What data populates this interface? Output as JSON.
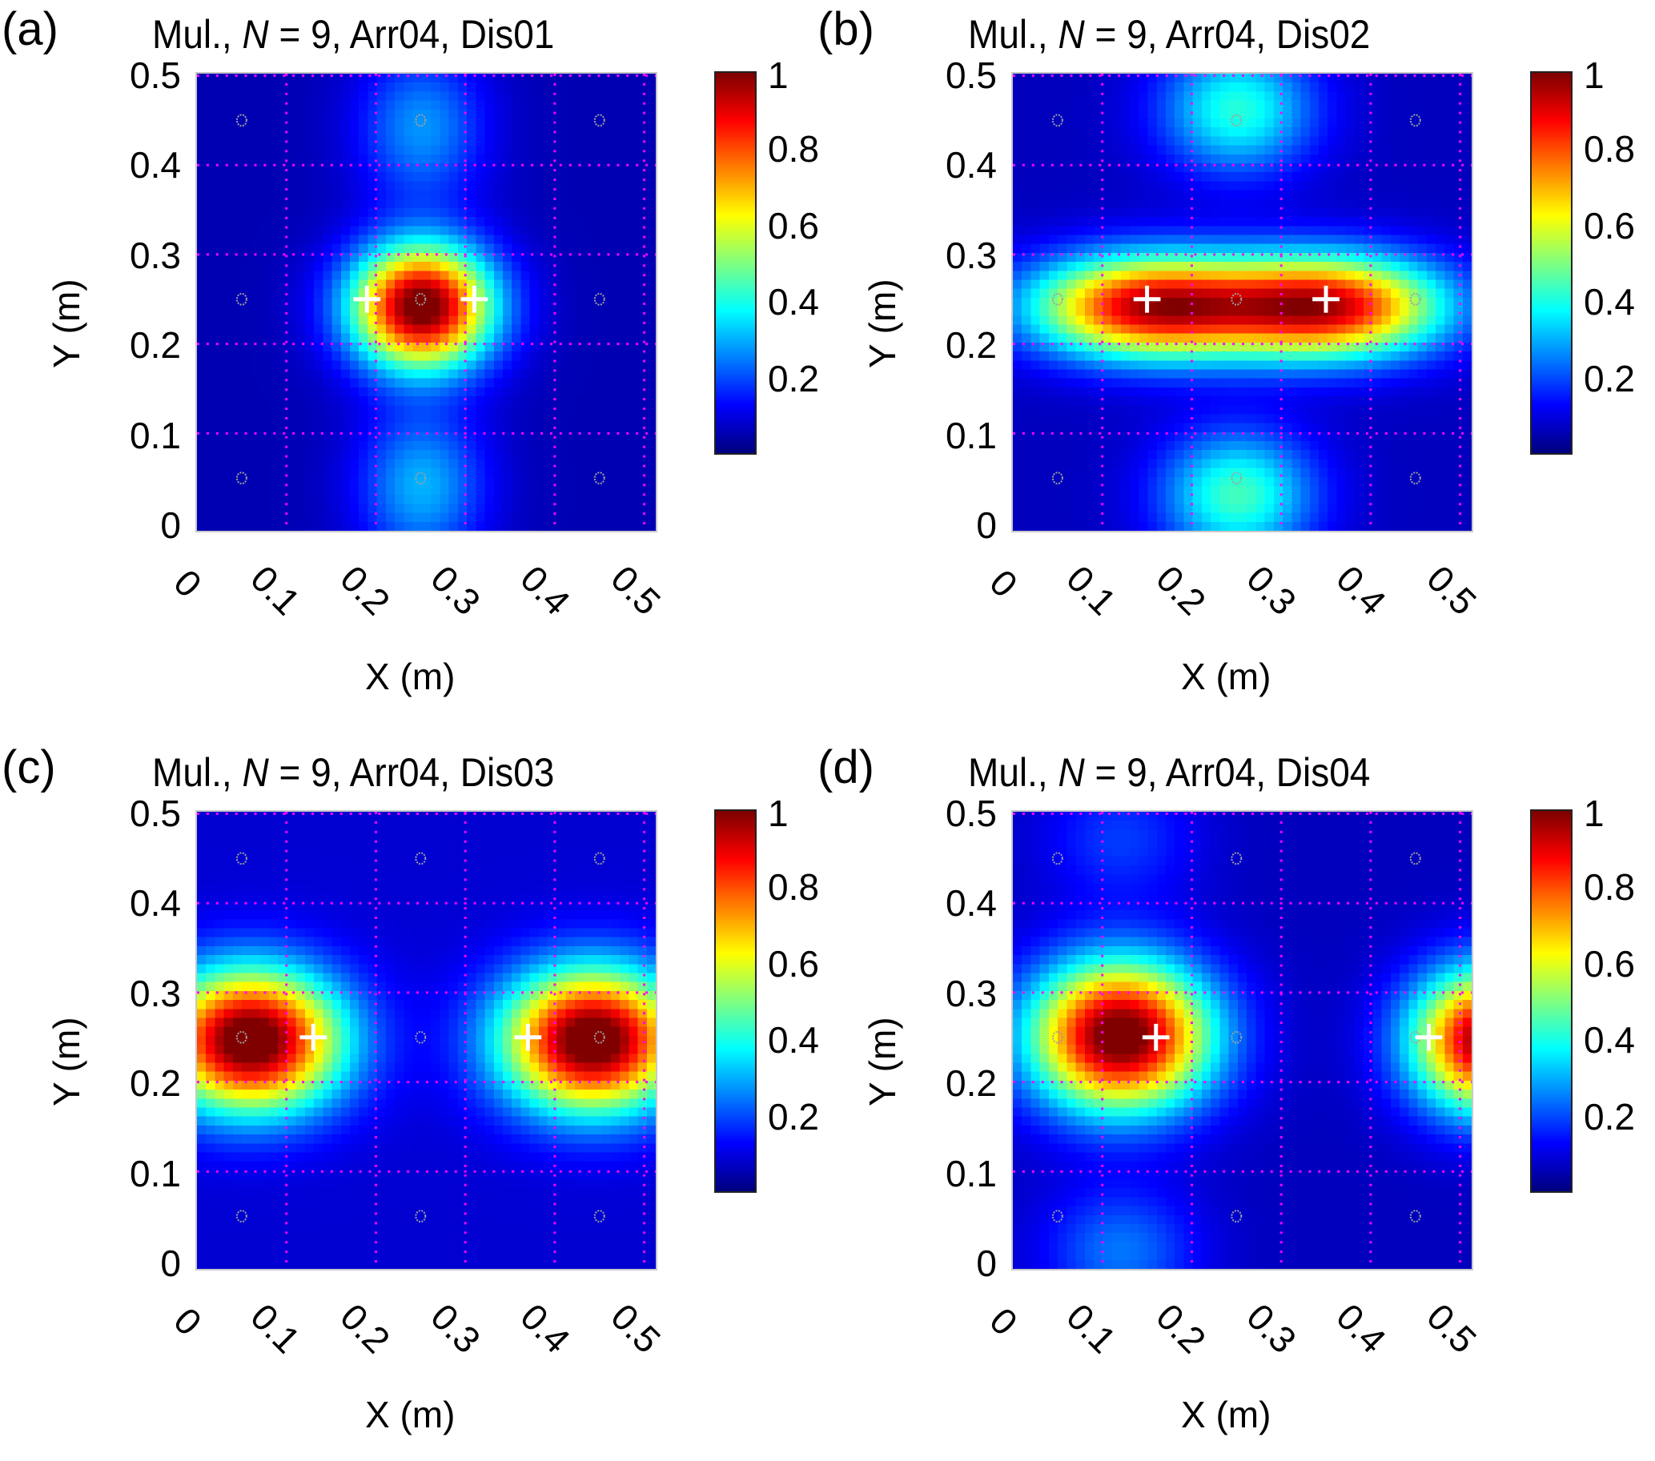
{
  "figure": {
    "colormap": "jet",
    "grid_color": "#ff00ff",
    "circle_color": "#a0a0a0",
    "cross_color": "#ffffff",
    "colorbar_ticks": [
      "1",
      "0.8",
      "0.6",
      "0.4",
      "0.2"
    ],
    "colorbar_tick_values": [
      1,
      0.8,
      0.6,
      0.4,
      0.2
    ],
    "colorbar_range": [
      0,
      1
    ]
  },
  "chart_data": [
    {
      "type": "heatmap",
      "panel_label": "(a)",
      "title_prefix": "Mul., ",
      "title_italic": "N",
      "title_suffix": " = 9, Arr04, Dis01",
      "xlabel": "X (m)",
      "ylabel": "Y (m)",
      "xlim": [
        0,
        0.51
      ],
      "ylim": [
        0,
        0.51
      ],
      "xticks": [
        "0",
        "0.1",
        "0.2",
        "0.3",
        "0.4",
        "0.5"
      ],
      "yticks": [
        "0.5",
        "0.4",
        "0.3",
        "0.2",
        "0.1",
        "0"
      ],
      "grid": true,
      "sensors": [
        [
          0.05,
          0.05
        ],
        [
          0.25,
          0.05
        ],
        [
          0.45,
          0.05
        ],
        [
          0.05,
          0.25
        ],
        [
          0.25,
          0.25
        ],
        [
          0.45,
          0.25
        ],
        [
          0.05,
          0.45
        ],
        [
          0.25,
          0.45
        ],
        [
          0.45,
          0.45
        ]
      ],
      "sources": [
        [
          0.19,
          0.25
        ],
        [
          0.31,
          0.25
        ]
      ],
      "field_components": [
        {
          "x": 0.25,
          "y": 0.25,
          "sx": 0.055,
          "sy": 0.048,
          "amp": 1.0
        },
        {
          "x": 0.25,
          "y": 0.45,
          "sx": 0.05,
          "sy": 0.06,
          "amp": 0.22
        },
        {
          "x": 0.25,
          "y": 0.05,
          "sx": 0.05,
          "sy": 0.06,
          "amp": 0.25
        }
      ],
      "base": 0.05
    },
    {
      "type": "heatmap",
      "panel_label": "(b)",
      "title_prefix": "Mul., ",
      "title_italic": "N",
      "title_suffix": " = 9, Arr04, Dis02",
      "xlabel": "X (m)",
      "ylabel": "Y (m)",
      "xlim": [
        0,
        0.51
      ],
      "ylim": [
        0,
        0.51
      ],
      "xticks": [
        "0",
        "0.1",
        "0.2",
        "0.3",
        "0.4",
        "0.5"
      ],
      "yticks": [
        "0.5",
        "0.4",
        "0.3",
        "0.2",
        "0.1",
        "0"
      ],
      "grid": true,
      "sensors": [
        [
          0.05,
          0.05
        ],
        [
          0.25,
          0.05
        ],
        [
          0.45,
          0.05
        ],
        [
          0.05,
          0.25
        ],
        [
          0.25,
          0.25
        ],
        [
          0.45,
          0.25
        ],
        [
          0.05,
          0.45
        ],
        [
          0.25,
          0.45
        ],
        [
          0.45,
          0.45
        ]
      ],
      "sources": [
        [
          0.15,
          0.25
        ],
        [
          0.35,
          0.25
        ]
      ],
      "field_components": [
        {
          "x": 0.15,
          "y": 0.25,
          "sx": 0.09,
          "sy": 0.04,
          "amp": 0.85
        },
        {
          "x": 0.35,
          "y": 0.25,
          "sx": 0.09,
          "sy": 0.04,
          "amp": 0.85
        },
        {
          "x": 0.25,
          "y": 0.47,
          "sx": 0.06,
          "sy": 0.05,
          "amp": 0.35
        },
        {
          "x": 0.25,
          "y": 0.04,
          "sx": 0.06,
          "sy": 0.05,
          "amp": 0.38
        }
      ],
      "base": 0.06
    },
    {
      "type": "heatmap",
      "panel_label": "(c)",
      "title_prefix": "Mul., ",
      "title_italic": "N",
      "title_suffix": " = 9, Arr04, Dis03",
      "xlabel": "X (m)",
      "ylabel": "Y (m)",
      "xlim": [
        0,
        0.51
      ],
      "ylim": [
        0,
        0.51
      ],
      "xticks": [
        "0",
        "0.1",
        "0.2",
        "0.3",
        "0.4",
        "0.5"
      ],
      "yticks": [
        "0.5",
        "0.4",
        "0.3",
        "0.2",
        "0.1",
        "0"
      ],
      "grid": true,
      "sensors": [
        [
          0.05,
          0.05
        ],
        [
          0.25,
          0.05
        ],
        [
          0.45,
          0.05
        ],
        [
          0.05,
          0.25
        ],
        [
          0.25,
          0.25
        ],
        [
          0.45,
          0.25
        ],
        [
          0.05,
          0.45
        ],
        [
          0.25,
          0.45
        ],
        [
          0.45,
          0.45
        ]
      ],
      "sources": [
        [
          0.13,
          0.25
        ],
        [
          0.37,
          0.25
        ]
      ],
      "field_components": [
        {
          "x": 0.06,
          "y": 0.255,
          "sx": 0.07,
          "sy": 0.055,
          "amp": 1.0
        },
        {
          "x": 0.44,
          "y": 0.255,
          "sx": 0.07,
          "sy": 0.055,
          "amp": 1.0
        }
      ],
      "base": 0.08
    },
    {
      "type": "heatmap",
      "panel_label": "(d)",
      "title_prefix": "Mul., ",
      "title_italic": "N",
      "title_suffix": " = 9, Arr04, Dis04",
      "xlabel": "X (m)",
      "ylabel": "Y (m)",
      "xlim": [
        0,
        0.51
      ],
      "ylim": [
        0,
        0.51
      ],
      "xticks": [
        "0",
        "0.1",
        "0.2",
        "0.3",
        "0.4",
        "0.5"
      ],
      "yticks": [
        "0.5",
        "0.4",
        "0.3",
        "0.2",
        "0.1",
        "0"
      ],
      "grid": true,
      "sensors": [
        [
          0.05,
          0.05
        ],
        [
          0.25,
          0.05
        ],
        [
          0.45,
          0.05
        ],
        [
          0.05,
          0.25
        ],
        [
          0.25,
          0.25
        ],
        [
          0.45,
          0.25
        ],
        [
          0.05,
          0.45
        ],
        [
          0.25,
          0.45
        ],
        [
          0.45,
          0.45
        ]
      ],
      "sources": [
        [
          0.16,
          0.25
        ],
        [
          0.465,
          0.25
        ]
      ],
      "field_components": [
        {
          "x": 0.12,
          "y": 0.26,
          "sx": 0.07,
          "sy": 0.058,
          "amp": 1.0
        },
        {
          "x": 0.53,
          "y": 0.255,
          "sx": 0.06,
          "sy": 0.055,
          "amp": 0.95
        },
        {
          "x": 0.12,
          "y": 0.02,
          "sx": 0.06,
          "sy": 0.05,
          "amp": 0.18
        },
        {
          "x": 0.12,
          "y": 0.48,
          "sx": 0.06,
          "sy": 0.05,
          "amp": 0.12
        }
      ],
      "base": 0.06
    }
  ]
}
